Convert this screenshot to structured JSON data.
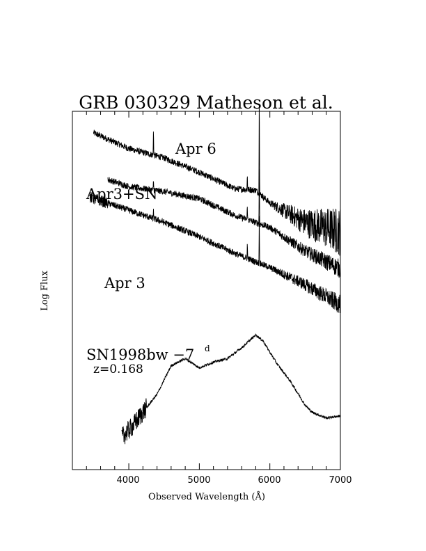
{
  "chart_data": {
    "type": "line",
    "title": "GRB 030329 Matheson et al.",
    "xlabel": "Observed Wavelength (Å)",
    "ylabel": "Log Flux",
    "xlim": [
      3200,
      7000
    ],
    "x_ticks": [
      "4000",
      "5000",
      "6000",
      "7000"
    ],
    "grid": false,
    "annotations": {
      "apr6": "Apr 6",
      "apr3sn": "Apr3+SN",
      "apr3": "Apr 3",
      "sn_name": "SN1998bw −7",
      "sn_sup": "d",
      "sn_z": "z=0.168"
    },
    "series": [
      {
        "name": "Apr 6",
        "x": [
          3500,
          4000,
          4500,
          5000,
          5500,
          5800,
          6000,
          6500,
          7000
        ],
        "y": [
          9.7,
          9.48,
          9.35,
          9.15,
          8.92,
          8.9,
          8.72,
          8.45,
          8.32
        ]
      },
      {
        "name": "Apr3+SN",
        "x": [
          3700,
          4000,
          4500,
          5000,
          5500,
          6000,
          6500,
          7000
        ],
        "y": [
          9.05,
          8.95,
          8.88,
          8.78,
          8.55,
          8.38,
          8.05,
          7.8
        ]
      },
      {
        "name": "Apr 3",
        "x": [
          3450,
          4000,
          4500,
          5000,
          5500,
          6000,
          6500,
          7000
        ],
        "y": [
          8.8,
          8.62,
          8.45,
          8.25,
          8.02,
          7.82,
          7.58,
          7.3
        ]
      },
      {
        "name": "SN1998bw −7d",
        "x": [
          3900,
          4050,
          4200,
          4400,
          4600,
          4800,
          5000,
          5200,
          5400,
          5600,
          5800,
          5900,
          6100,
          6300,
          6500,
          6600,
          6800,
          7000
        ],
        "y": [
          5.45,
          5.6,
          5.8,
          6.05,
          6.45,
          6.55,
          6.42,
          6.5,
          6.55,
          6.7,
          6.88,
          6.8,
          6.48,
          6.22,
          5.9,
          5.8,
          5.72,
          5.75
        ]
      }
    ],
    "lines": [
      {
        "x": 4350,
        "dy": 0.38
      },
      {
        "x": 5680,
        "dy": 0.22
      },
      {
        "x": 5850,
        "dy": 1.55
      }
    ]
  }
}
